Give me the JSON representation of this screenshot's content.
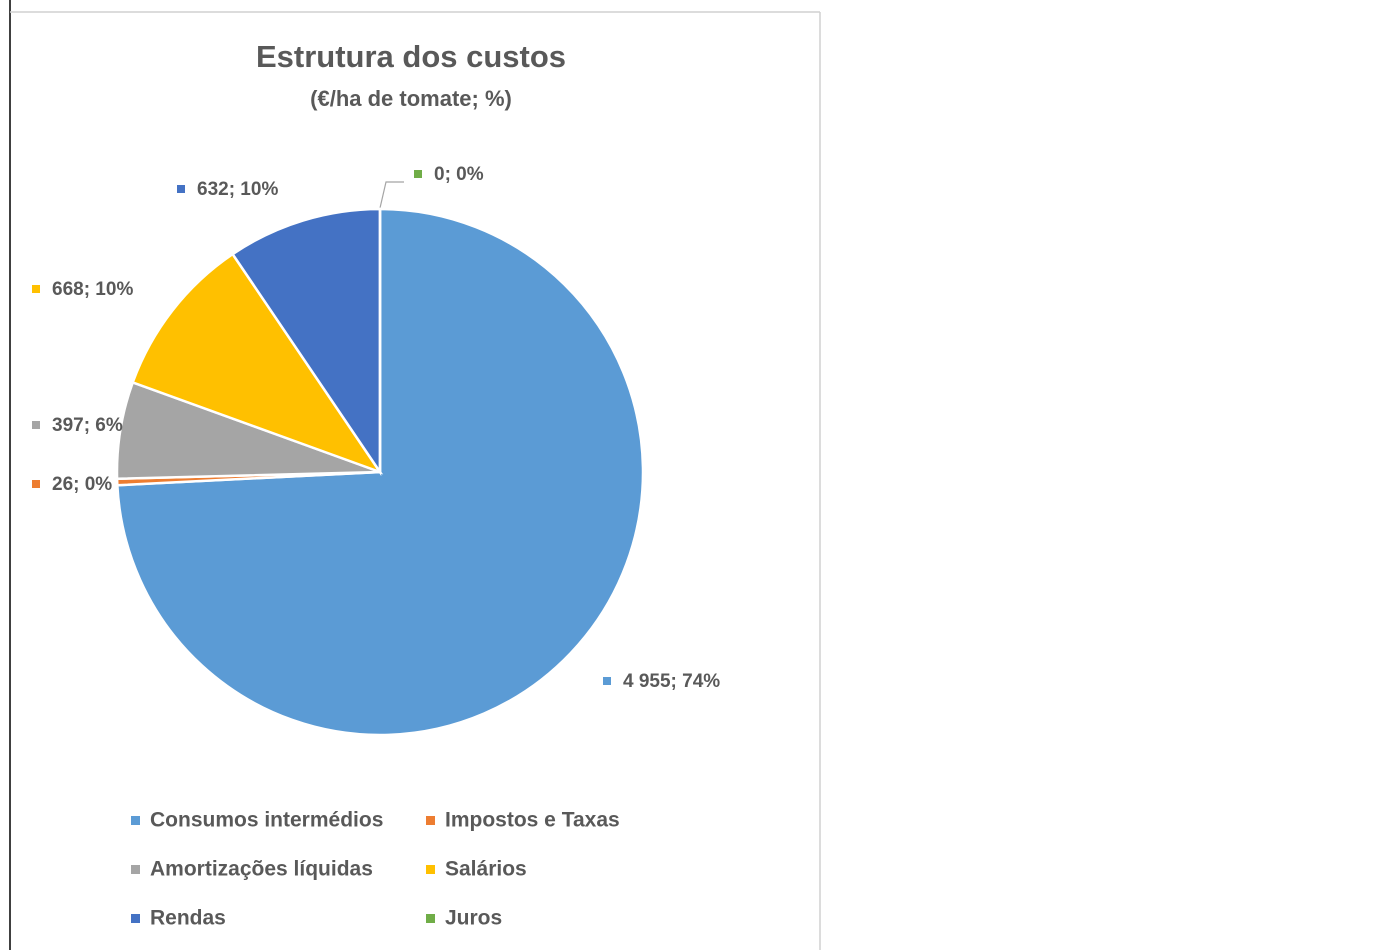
{
  "chart_data": {
    "type": "pie",
    "title": "Estrutura dos custos",
    "subtitle": "(€/ha de tomate; %)",
    "categories": [
      "Consumos intermédios",
      "Impostos e Taxas",
      "Amortizações líquidas",
      "Salários",
      "Rendas",
      "Juros"
    ],
    "values": [
      4955,
      26,
      397,
      668,
      632,
      0
    ],
    "value_labels": [
      "4 955; 74%",
      "26; 0%",
      "397; 6%",
      "668; 10%",
      "632; 10%",
      "0; 0%"
    ],
    "colors": [
      "#5b9bd5",
      "#ed7d31",
      "#a5a5a5",
      "#ffc000",
      "#4472c4",
      "#70ad47"
    ],
    "legend": "bottom"
  }
}
